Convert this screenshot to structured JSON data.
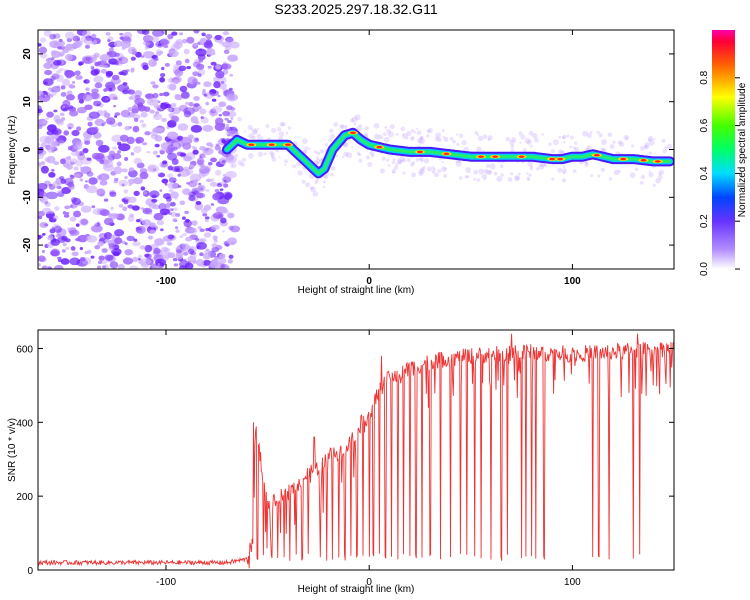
{
  "chart_data": [
    {
      "type": "heatmap",
      "title": "S233.2025.297.18.32.G11",
      "xlabel": "Height of straight line (km)",
      "ylabel": "Frequency (Hz)",
      "xlim": [
        -163,
        150
      ],
      "ylim": [
        -25,
        25
      ],
      "xticks": [
        "-100",
        "0",
        "100"
      ],
      "yticks": [
        "-20",
        "-10",
        "0",
        "10",
        "20"
      ],
      "noise_region_x": [
        -163,
        -70
      ],
      "ridge": {
        "x": [
          -70,
          -65,
          -60,
          -50,
          -40,
          -35,
          -30,
          -25,
          -22,
          -18,
          -12,
          -8,
          -4,
          0,
          5,
          10,
          20,
          30,
          40,
          50,
          60,
          70,
          80,
          90,
          95,
          100,
          105,
          110,
          120,
          130,
          140,
          148
        ],
        "freq": [
          0,
          2,
          1,
          1,
          1,
          -1,
          -3,
          -5,
          -4,
          0,
          3,
          3.5,
          2,
          1,
          0.5,
          0,
          -0.5,
          -0.5,
          -1,
          -1.5,
          -1.5,
          -1.5,
          -1.5,
          -2,
          -2,
          -1.5,
          -1.5,
          -1,
          -2,
          -2,
          -2.5,
          -2.5
        ]
      },
      "colorbar": {
        "label": "Normalized spectral amplitude",
        "ticks": [
          "0.0",
          "0.2",
          "0.4",
          "0.6",
          "0.8"
        ],
        "range": [
          0,
          1
        ]
      }
    },
    {
      "type": "line",
      "xlabel": "Height of straight line (km)",
      "ylabel": "SNR (10 * v/v)",
      "xlim": [
        -163,
        150
      ],
      "ylim": [
        0,
        650
      ],
      "xticks": [
        "-100",
        "0",
        "100"
      ],
      "yticks": [
        "0",
        "200",
        "400",
        "600"
      ],
      "series": [
        {
          "name": "SNR",
          "color": "#ee3333",
          "envelope": {
            "x": [
              -163,
              -70,
              -60,
              -57,
              -56,
              -50,
              -40,
              -30,
              -20,
              -10,
              -5,
              0,
              5,
              10,
              20,
              30,
              50,
              80,
              100,
              150
            ],
            "y": [
              20,
              20,
              30,
              80,
              400,
              170,
              210,
              260,
              300,
              340,
              390,
              420,
              490,
              520,
              545,
              565,
              580,
              590,
              585,
              600
            ]
          },
          "spikes": [
            {
              "x": -57,
              "y": 400
            },
            {
              "x": -27,
              "y": 360
            },
            {
              "x": -19,
              "y": 330
            },
            {
              "x": 6,
              "y": 580
            },
            {
              "x": 70,
              "y": 640
            },
            {
              "x": 132,
              "y": 640
            }
          ],
          "dropouts_x": [
            -55,
            -52,
            -48,
            -45,
            -42,
            -39,
            -36,
            -33,
            -30,
            -27,
            -24,
            -21,
            -18,
            -15,
            -12,
            -9,
            -6,
            -3,
            0,
            2,
            5,
            8,
            11,
            14,
            17,
            20,
            23,
            26,
            30,
            35,
            40,
            45,
            48,
            52,
            55,
            60,
            65,
            68,
            70,
            75,
            77,
            80,
            82,
            86,
            110,
            113,
            118,
            130,
            133
          ]
        }
      ]
    }
  ]
}
